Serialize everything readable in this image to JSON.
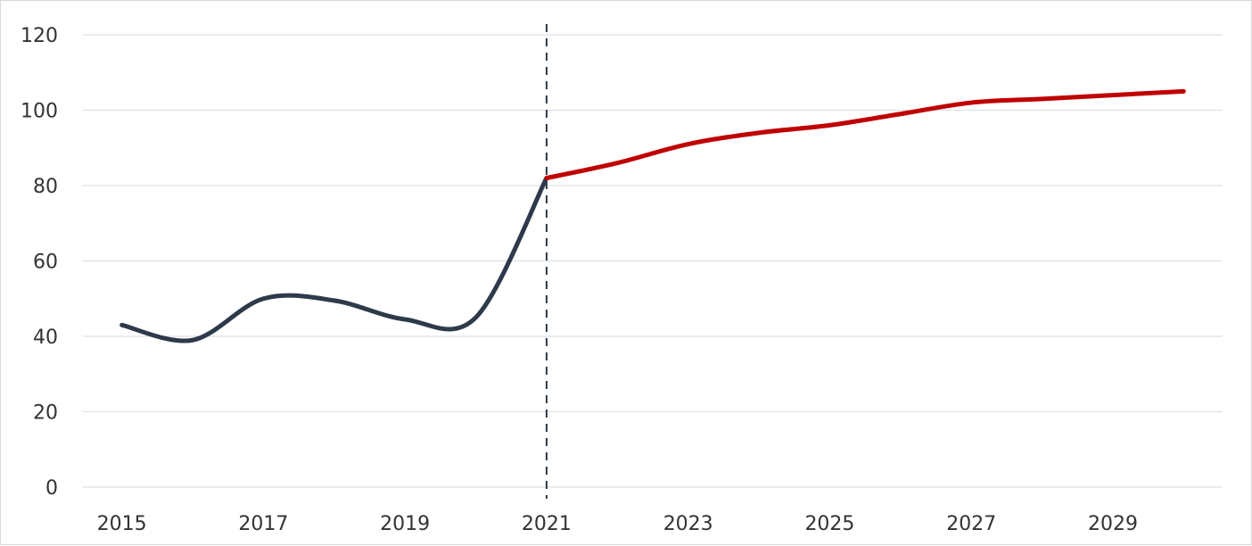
{
  "colors": {
    "actual": "#2d3a4a",
    "forecast": "#c00000",
    "grid": "#dde1e6",
    "divider": "#2d3a4a",
    "text": "#333333"
  },
  "chart_data": {
    "type": "line",
    "title": "",
    "xlabel": "",
    "ylabel": "",
    "ylim": [
      0,
      120
    ],
    "xlim": [
      2015,
      2030
    ],
    "yticks": [
      0,
      20,
      40,
      60,
      80,
      100,
      120
    ],
    "xticks": [
      2015,
      2017,
      2019,
      2021,
      2023,
      2025,
      2027,
      2029
    ],
    "grid": "horizontal",
    "legend": "none",
    "divider_x": 2021,
    "series": [
      {
        "key": "actual",
        "x": [
          2015,
          2016,
          2017,
          2018,
          2019,
          2020,
          2021
        ],
        "values": [
          43,
          39,
          50,
          49.5,
          44.5,
          45,
          82
        ]
      },
      {
        "key": "forecast",
        "x": [
          2021,
          2022,
          2023,
          2024,
          2025,
          2026,
          2027,
          2028,
          2029,
          2030
        ],
        "values": [
          82,
          86,
          91,
          94,
          96,
          99,
          102,
          103,
          104,
          105
        ]
      }
    ]
  }
}
